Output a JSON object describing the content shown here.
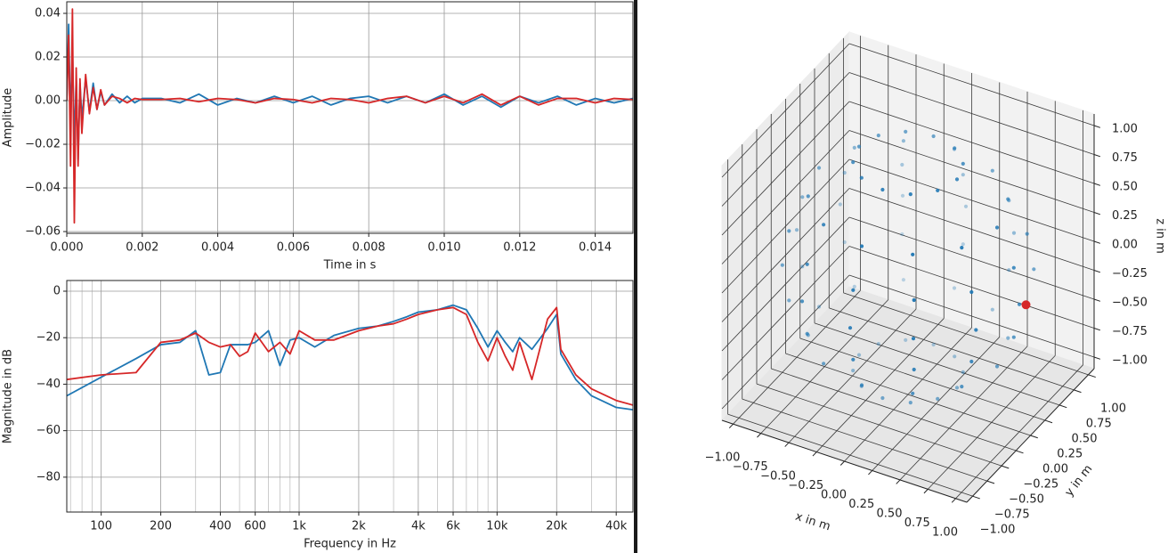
{
  "chart_data": [
    {
      "type": "line",
      "xlabel": "Time in s",
      "ylabel": "Amplitude",
      "x": [
        0,
        5e-05,
        0.0001,
        0.00015,
        0.0002,
        0.00025,
        0.0003,
        0.00035,
        0.0004,
        0.0005,
        0.0006,
        0.0007,
        0.0008,
        0.0009,
        0.001,
        0.0012,
        0.0014,
        0.0016,
        0.0018,
        0.002,
        0.0025,
        0.003,
        0.0035,
        0.004,
        0.0045,
        0.005,
        0.0055,
        0.006,
        0.0065,
        0.007,
        0.0075,
        0.008,
        0.0085,
        0.009,
        0.0095,
        0.01,
        0.0105,
        0.011,
        0.0115,
        0.012,
        0.0125,
        0.013,
        0.0135,
        0.014,
        0.0145,
        0.015
      ],
      "series": [
        {
          "color": "#1f77b4",
          "values": [
            0,
            0.035,
            -0.01,
            0.025,
            -0.02,
            0.01,
            -0.027,
            0.008,
            -0.008,
            0.01,
            -0.005,
            0.008,
            -0.004,
            0.004,
            -0.002,
            0.003,
            -0.001,
            0.002,
            -0.001,
            0.001,
            0.001,
            -0.001,
            0.003,
            -0.002,
            0.001,
            -0.001,
            0.002,
            -0.001,
            0.002,
            -0.002,
            0.001,
            0.002,
            -0.001,
            0.002,
            -0.001,
            0.003,
            -0.002,
            0.002,
            -0.003,
            0.002,
            -0.001,
            0.002,
            -0.002,
            0.001,
            -0.001,
            0.001
          ]
        },
        {
          "color": "#d62728",
          "values": [
            0,
            0.03,
            -0.03,
            0.042,
            -0.056,
            0.015,
            -0.03,
            0.01,
            -0.015,
            0.012,
            -0.006,
            0.006,
            -0.004,
            0.005,
            -0.002,
            0.002,
            0.001,
            -0.001,
            0.001,
            0.0005,
            0.0005,
            0.001,
            -0.0005,
            0.001,
            0.0005,
            -0.001,
            0.001,
            0.0005,
            -0.001,
            0.001,
            0.0005,
            -0.001,
            0.001,
            0.002,
            -0.001,
            0.002,
            -0.001,
            0.003,
            -0.002,
            0.002,
            -0.002,
            0.001,
            0.001,
            -0.001,
            0.001,
            0.0005
          ]
        }
      ],
      "xlim": [
        0,
        0.015
      ],
      "ylim": [
        -0.0608,
        0.0453
      ],
      "xticks": [
        {
          "value": 0,
          "label": "0.000"
        },
        {
          "value": 0.002,
          "label": "0.002"
        },
        {
          "value": 0.004,
          "label": "0.004"
        },
        {
          "value": 0.006,
          "label": "0.006"
        },
        {
          "value": 0.008,
          "label": "0.008"
        },
        {
          "value": 0.01,
          "label": "0.010"
        },
        {
          "value": 0.012,
          "label": "0.012"
        },
        {
          "value": 0.014,
          "label": "0.014"
        }
      ],
      "yticks": [
        {
          "value": -0.06,
          "label": "−0.06"
        },
        {
          "value": -0.04,
          "label": "−0.04"
        },
        {
          "value": -0.02,
          "label": "−0.02"
        },
        {
          "value": 0,
          "label": "0.00"
        },
        {
          "value": 0.02,
          "label": "0.02"
        },
        {
          "value": 0.04,
          "label": "0.04"
        }
      ],
      "grid": true
    },
    {
      "type": "line",
      "xlabel": "Frequency in Hz",
      "ylabel": "Magnitude in dB",
      "xscale": "log",
      "x": [
        67,
        100,
        150,
        200,
        250,
        300,
        350,
        400,
        450,
        500,
        550,
        600,
        700,
        800,
        900,
        1000,
        1200,
        1500,
        2000,
        2500,
        3000,
        3500,
        4000,
        5000,
        6000,
        7000,
        8000,
        9000,
        10000,
        11000,
        12000,
        13000,
        15000,
        18000,
        20000,
        21000,
        25000,
        30000,
        40000,
        48600
      ],
      "series": [
        {
          "color": "#1f77b4",
          "values": [
            -45,
            -37,
            -29,
            -23,
            -22,
            -17,
            -36,
            -35,
            -23,
            -23,
            -23,
            -22,
            -17,
            -32,
            -21,
            -20,
            -24,
            -19,
            -16,
            -15,
            -13,
            -11,
            -9,
            -8,
            -6,
            -8,
            -16,
            -24,
            -17,
            -22,
            -26,
            -20,
            -25,
            -16,
            -10,
            -27,
            -38,
            -45,
            -50,
            -51
          ]
        },
        {
          "color": "#d62728",
          "values": [
            -38,
            -36,
            -35,
            -22,
            -21,
            -18,
            -22,
            -24,
            -23,
            -28,
            -26,
            -18,
            -26,
            -22,
            -27,
            -17,
            -21,
            -21,
            -17,
            -15,
            -14,
            -12,
            -10,
            -8,
            -7,
            -10,
            -22,
            -30,
            -20,
            -28,
            -34,
            -22,
            -38,
            -12,
            -7,
            -25,
            -36,
            -42,
            -47,
            -49
          ]
        }
      ],
      "xlim": [
        67,
        48600
      ],
      "ylim": [
        -95,
        4.6
      ],
      "xticks": [
        100,
        200,
        400,
        600,
        {
          "value": 1000,
          "label": "1k"
        },
        {
          "value": 2000,
          "label": "2k"
        },
        {
          "value": 4000,
          "label": "4k"
        },
        {
          "value": 6000,
          "label": "6k"
        },
        {
          "value": 10000,
          "label": "10k"
        },
        {
          "value": 20000,
          "label": "20k"
        },
        {
          "value": 40000,
          "label": "40k"
        }
      ],
      "xminorticks": [
        70,
        80,
        90,
        300,
        500,
        700,
        800,
        900,
        3000,
        5000,
        7000,
        8000,
        9000,
        30000
      ],
      "yticks": [
        {
          "value": -80,
          "label": "−80"
        },
        {
          "value": -60,
          "label": "−60"
        },
        {
          "value": -40,
          "label": "−40"
        },
        {
          "value": -20,
          "label": "−20"
        },
        0
      ],
      "grid": true
    },
    {
      "type": "scatter3d",
      "xlabel": "x in m",
      "ylabel": "y in m",
      "zlabel": "z in m",
      "xlim": [
        -1.1,
        1.1
      ],
      "ylim": [
        -1.1,
        1.1
      ],
      "zlim": [
        -1.1,
        1.1
      ],
      "xticks": [
        {
          "value": -1,
          "label": "−1.00"
        },
        {
          "value": -0.75,
          "label": "−0.75"
        },
        {
          "value": -0.5,
          "label": "−0.50"
        },
        {
          "value": -0.25,
          "label": "−0.25"
        },
        {
          "value": 0,
          "label": "0.00"
        },
        {
          "value": 0.25,
          "label": "0.25"
        },
        {
          "value": 0.5,
          "label": "0.50"
        },
        {
          "value": 0.75,
          "label": "0.75"
        },
        {
          "value": 1,
          "label": "1.00"
        }
      ],
      "yticks": [
        {
          "value": -1,
          "label": "−1.00"
        },
        {
          "value": -0.75,
          "label": "−0.75"
        },
        {
          "value": -0.5,
          "label": "−0.50"
        },
        {
          "value": -0.25,
          "label": "−0.25"
        },
        {
          "value": 0,
          "label": "0.00"
        },
        {
          "value": 0.25,
          "label": "0.25"
        },
        {
          "value": 0.5,
          "label": "0.50"
        },
        {
          "value": 0.75,
          "label": "0.75"
        },
        {
          "value": 1,
          "label": "1.00"
        }
      ],
      "zticks": [
        {
          "value": -1,
          "label": "−1.00"
        },
        {
          "value": -0.75,
          "label": "−0.75"
        },
        {
          "value": -0.5,
          "label": "−0.50"
        },
        {
          "value": -0.25,
          "label": "−0.25"
        },
        {
          "value": 0,
          "label": "0.00"
        },
        {
          "value": 0.25,
          "label": "0.25"
        },
        {
          "value": 0.5,
          "label": "0.50"
        },
        {
          "value": 0.75,
          "label": "0.75"
        },
        {
          "value": 1,
          "label": "1.00"
        }
      ],
      "series": [
        {
          "color": "#1f77b4",
          "x": [
            0.44,
            0.38,
            0.22,
            0,
            -0.22,
            -0.38,
            -0.44,
            -0.38,
            -0.22,
            0,
            0.22,
            0.38,
            0.8,
            0.69,
            0.4,
            0,
            -0.4,
            -0.69,
            -0.8,
            -0.69,
            -0.4,
            0,
            0.4,
            0.69,
            0.95,
            0.82,
            0.48,
            0,
            -0.48,
            -0.82,
            -0.95,
            -0.82,
            -0.48,
            0,
            0.48,
            0.82,
            1,
            0.87,
            0.5,
            0,
            -0.5,
            -0.87,
            -1,
            -0.87,
            -0.5,
            0,
            0.5,
            0.87,
            0.95,
            0.82,
            0.48,
            0,
            -0.48,
            -0.82,
            -0.95,
            -0.82,
            -0.48,
            0,
            0.48,
            0.82,
            0.8,
            0.69,
            0.4,
            0,
            -0.4,
            -0.69,
            -0.8,
            -0.69,
            -0.4,
            0,
            0.4,
            0.69,
            0.44,
            0.38,
            0.22,
            0,
            -0.22,
            -0.38,
            -0.44,
            -0.38,
            -0.22,
            0,
            0.22,
            0.38
          ],
          "y": [
            0,
            0.22,
            0.38,
            0.44,
            0.38,
            0.22,
            0,
            -0.22,
            -0.38,
            -0.44,
            -0.38,
            -0.22,
            0,
            0.4,
            0.69,
            0.8,
            0.69,
            0.4,
            0,
            -0.4,
            -0.69,
            -0.8,
            -0.69,
            -0.4,
            0,
            0.48,
            0.82,
            0.95,
            0.82,
            0.48,
            0,
            -0.48,
            -0.82,
            -0.95,
            -0.82,
            -0.48,
            0,
            0.5,
            0.87,
            1,
            0.87,
            0.5,
            0,
            -0.5,
            -0.87,
            -1,
            -0.87,
            -0.5,
            0,
            0.48,
            0.82,
            0.95,
            0.82,
            0.48,
            0,
            -0.48,
            -0.82,
            -0.95,
            -0.82,
            -0.48,
            0,
            0.4,
            0.69,
            0.8,
            0.69,
            0.4,
            0,
            -0.4,
            -0.69,
            -0.8,
            -0.69,
            -0.4,
            0,
            0.22,
            0.38,
            0.44,
            0.38,
            0.22,
            0,
            -0.22,
            -0.38,
            -0.44,
            -0.38,
            -0.22
          ],
          "z": [
            0.9,
            0.9,
            0.9,
            0.9,
            0.9,
            0.9,
            0.9,
            0.9,
            0.9,
            0.9,
            0.9,
            0.9,
            0.6,
            0.6,
            0.6,
            0.6,
            0.6,
            0.6,
            0.6,
            0.6,
            0.6,
            0.6,
            0.6,
            0.6,
            0.3,
            0.3,
            0.3,
            0.3,
            0.3,
            0.3,
            0.3,
            0.3,
            0.3,
            0.3,
            0.3,
            0.3,
            0,
            0,
            0,
            0,
            0,
            0,
            0,
            0,
            0,
            0,
            0,
            0,
            -0.3,
            -0.3,
            -0.3,
            -0.3,
            -0.3,
            -0.3,
            -0.3,
            -0.3,
            -0.3,
            -0.3,
            -0.3,
            -0.3,
            -0.6,
            -0.6,
            -0.6,
            -0.6,
            -0.6,
            -0.6,
            -0.6,
            -0.6,
            -0.6,
            -0.6,
            -0.6,
            -0.6,
            -0.9,
            -0.9,
            -0.9,
            -0.9,
            -0.9,
            -0.9,
            -0.9,
            -0.9,
            -0.9,
            -0.9,
            -0.9,
            -0.9
          ]
        },
        {
          "color": "#d62728",
          "x": [
            0.8
          ],
          "y": [
            0.5
          ],
          "z": [
            -0.33
          ]
        }
      ]
    }
  ]
}
